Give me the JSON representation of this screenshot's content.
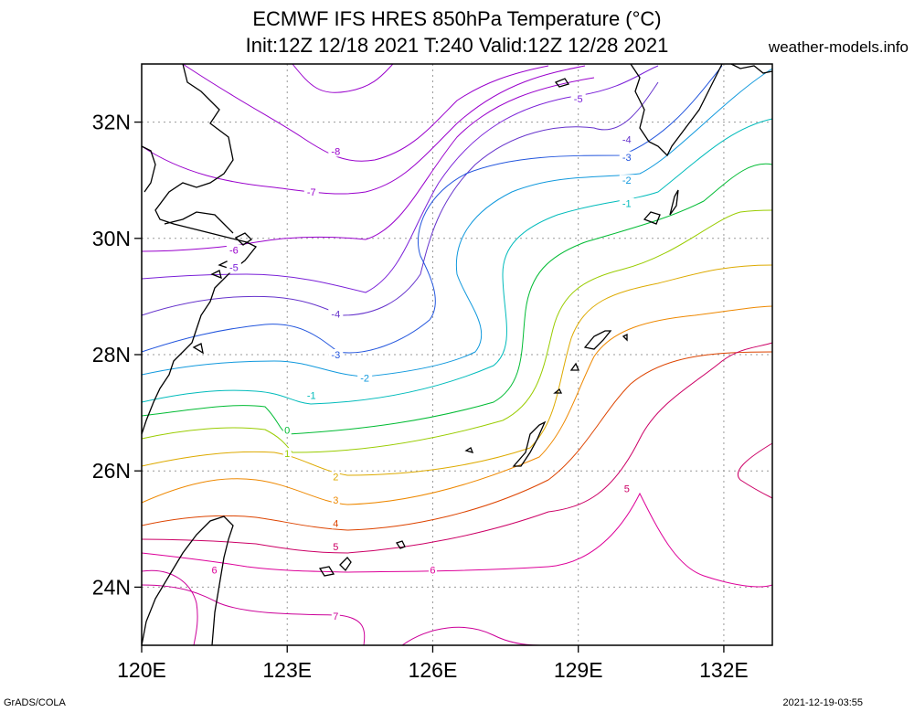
{
  "header": {
    "title_line1": "ECMWF IFS HRES 850hPa Temperature (°C)",
    "title_line2": "Init:12Z 12/18 2021 T:240 Valid:12Z 12/28 2021",
    "site": "weather-models.info"
  },
  "footer": {
    "software": "GrADS/COLA",
    "generated": "2021-12-19-03:55"
  },
  "axes": {
    "lon_ticks": [
      "120E",
      "123E",
      "126E",
      "129E",
      "132E"
    ],
    "lat_ticks": [
      "24N",
      "26N",
      "28N",
      "30N",
      "32N"
    ],
    "lon_range": [
      120,
      133
    ],
    "lat_range": [
      23,
      33
    ],
    "grid": "dotted"
  },
  "contours": [
    {
      "value": -8,
      "color": "#9900cc"
    },
    {
      "value": -7,
      "color": "#9900cc"
    },
    {
      "value": -6,
      "color": "#9900cc"
    },
    {
      "value": -5,
      "color": "#7a20d8"
    },
    {
      "value": -4,
      "color": "#6633cc"
    },
    {
      "value": -3,
      "color": "#2255dd"
    },
    {
      "value": -2,
      "color": "#1199dd"
    },
    {
      "value": -1,
      "color": "#00bbbb"
    },
    {
      "value": 0,
      "color": "#00bb33"
    },
    {
      "value": 1,
      "color": "#99cc00"
    },
    {
      "value": 2,
      "color": "#ddaa00"
    },
    {
      "value": 3,
      "color": "#ee8800"
    },
    {
      "value": 4,
      "color": "#dd4400"
    },
    {
      "value": 5,
      "color": "#cc0066"
    },
    {
      "value": 6,
      "color": "#dd0099"
    },
    {
      "value": 7,
      "color": "#cc0099"
    }
  ],
  "contour_labels": [
    {
      "text": "-8",
      "lon": 124.0,
      "lat": 31.5,
      "value": -8
    },
    {
      "text": "-7",
      "lon": 123.5,
      "lat": 30.8,
      "value": -7
    },
    {
      "text": "-6",
      "lon": 121.9,
      "lat": 29.8,
      "value": -6
    },
    {
      "text": "-5",
      "lon": 121.9,
      "lat": 29.5,
      "value": -5
    },
    {
      "text": "-4",
      "lon": 124.0,
      "lat": 28.7,
      "value": -4
    },
    {
      "text": "-3",
      "lon": 124.0,
      "lat": 28.0,
      "value": -3
    },
    {
      "text": "-2",
      "lon": 124.6,
      "lat": 27.6,
      "value": -2
    },
    {
      "text": "-1",
      "lon": 123.5,
      "lat": 27.3,
      "value": -1
    },
    {
      "text": "0",
      "lon": 123.0,
      "lat": 26.7,
      "value": 0
    },
    {
      "text": "1",
      "lon": 123.0,
      "lat": 26.3,
      "value": 1
    },
    {
      "text": "2",
      "lon": 124.0,
      "lat": 25.9,
      "value": 2
    },
    {
      "text": "3",
      "lon": 124.0,
      "lat": 25.5,
      "value": 3
    },
    {
      "text": "4",
      "lon": 124.0,
      "lat": 25.1,
      "value": 4
    },
    {
      "text": "5",
      "lon": 124.0,
      "lat": 24.7,
      "value": 5
    },
    {
      "text": "6",
      "lon": 121.5,
      "lat": 24.3,
      "value": 6
    },
    {
      "text": "6",
      "lon": 126.0,
      "lat": 24.3,
      "value": 6
    },
    {
      "text": "7",
      "lon": 124.0,
      "lat": 23.5,
      "value": 7
    },
    {
      "text": "5",
      "lon": 130.0,
      "lat": 25.7,
      "value": 5
    },
    {
      "text": "-5",
      "lon": 129.0,
      "lat": 32.4,
      "value": -5
    },
    {
      "text": "-4",
      "lon": 130.0,
      "lat": 31.7,
      "value": -4
    },
    {
      "text": "-3",
      "lon": 130.0,
      "lat": 31.4,
      "value": -3
    },
    {
      "text": "-2",
      "lon": 130.0,
      "lat": 31.0,
      "value": -2
    },
    {
      "text": "-1",
      "lon": 130.0,
      "lat": 30.6,
      "value": -1
    }
  ]
}
